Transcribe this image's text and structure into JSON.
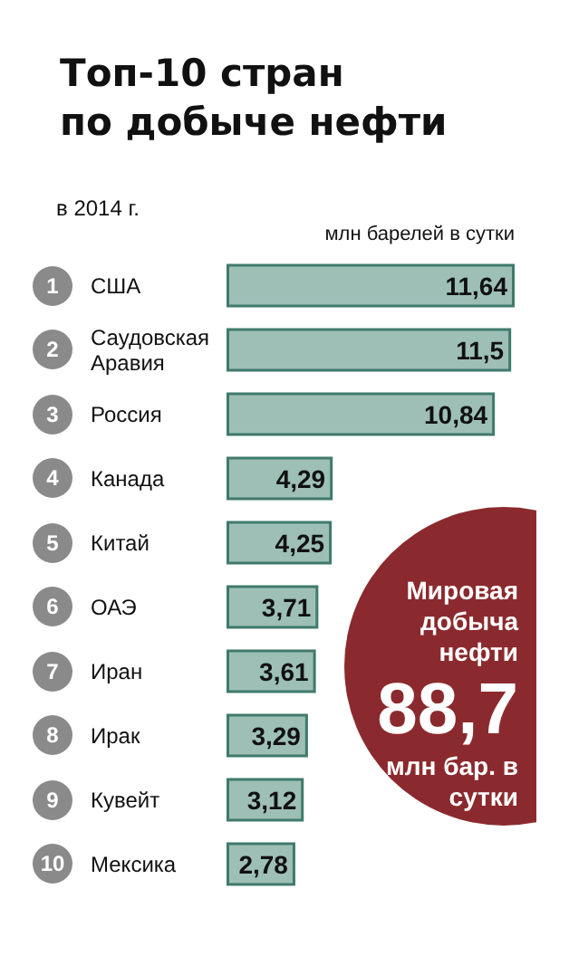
{
  "chart_data": {
    "type": "bar",
    "orientation": "horizontal",
    "title": "Топ-10 стран\nпо добыче нефти",
    "subtitle": "в 2014 г.",
    "xlabel": "млн барелей в сутки",
    "categories": [
      "США",
      "Саудовская Аравия",
      "Россия",
      "Канада",
      "Китай",
      "ОАЭ",
      "Иран",
      "Ирак",
      "Кувейт",
      "Мексика"
    ],
    "values": [
      11.64,
      11.5,
      10.84,
      4.29,
      4.25,
      3.71,
      3.61,
      3.29,
      3.12,
      2.78
    ],
    "value_labels": [
      "11,64",
      "11,5",
      "10,84",
      "4,29",
      "4,25",
      "3,71",
      "3,61",
      "3,29",
      "3,12",
      "2,78"
    ],
    "color": "#9dbfb6",
    "annotations": [
      "1",
      "2",
      "3",
      "4",
      "5",
      "6",
      "7",
      "8",
      "9",
      "10",
      "Мировая добыча нефти",
      "88,7",
      "млн бар. в сутки"
    ]
  }
}
